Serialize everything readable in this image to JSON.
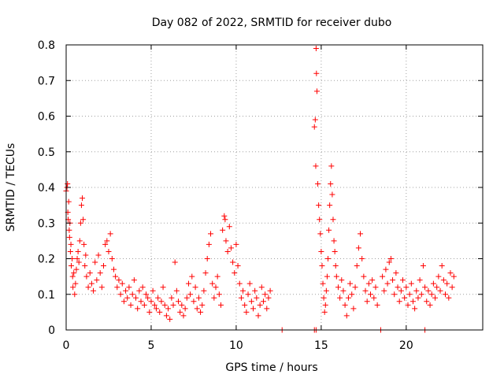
{
  "chart_data": {
    "type": "scatter",
    "title": "Day 082 of 2022, SRMTID for receiver dubo",
    "xlabel": "GPS time / hours",
    "ylabel": "SRMTID / TECUs",
    "xlim": [
      0,
      24.5
    ],
    "ylim": [
      0,
      0.8
    ],
    "grid": true,
    "marker": "+",
    "x_ticks": [
      0,
      5,
      10,
      15,
      20
    ],
    "x_tick_labels": [
      "0",
      "5",
      "10",
      "15",
      "20"
    ],
    "y_ticks": [
      0,
      0.1,
      0.2,
      0.3,
      0.4,
      0.5,
      0.6,
      0.7,
      0.8
    ],
    "y_tick_labels": [
      "0",
      "0.1",
      "0.2",
      "0.3",
      "0.4",
      "0.5",
      "0.6",
      "0.7",
      "0.8"
    ],
    "colors": {
      "series": "#ff0000",
      "grid": "#a0a0a0",
      "axis": "#000000"
    },
    "series": [
      {
        "name": "SRMTID",
        "points": [
          [
            0.0,
            0.39
          ],
          [
            0.05,
            0.4
          ],
          [
            0.08,
            0.41
          ],
          [
            0.1,
            0.33
          ],
          [
            0.12,
            0.31
          ],
          [
            0.15,
            0.36
          ],
          [
            0.18,
            0.28
          ],
          [
            0.2,
            0.26
          ],
          [
            0.22,
            0.3
          ],
          [
            0.25,
            0.22
          ],
          [
            0.28,
            0.24
          ],
          [
            0.3,
            0.18
          ],
          [
            0.35,
            0.2
          ],
          [
            0.38,
            0.15
          ],
          [
            0.4,
            0.12
          ],
          [
            0.45,
            0.16
          ],
          [
            0.5,
            0.1
          ],
          [
            0.55,
            0.13
          ],
          [
            0.6,
            0.17
          ],
          [
            0.65,
            0.2
          ],
          [
            0.7,
            0.22
          ],
          [
            0.75,
            0.19
          ],
          [
            0.8,
            0.25
          ],
          [
            0.85,
            0.3
          ],
          [
            0.9,
            0.35
          ],
          [
            0.95,
            0.37
          ],
          [
            1.0,
            0.31
          ],
          [
            1.05,
            0.24
          ],
          [
            1.1,
            0.18
          ],
          [
            1.15,
            0.21
          ],
          [
            1.2,
            0.15
          ],
          [
            1.3,
            0.12
          ],
          [
            1.4,
            0.16
          ],
          [
            1.5,
            0.13
          ],
          [
            1.6,
            0.11
          ],
          [
            1.7,
            0.19
          ],
          [
            1.8,
            0.14
          ],
          [
            1.9,
            0.21
          ],
          [
            2.0,
            0.16
          ],
          [
            2.1,
            0.12
          ],
          [
            2.2,
            0.18
          ],
          [
            2.3,
            0.24
          ],
          [
            2.4,
            0.25
          ],
          [
            2.5,
            0.22
          ],
          [
            2.6,
            0.27
          ],
          [
            2.7,
            0.2
          ],
          [
            2.8,
            0.17
          ],
          [
            2.9,
            0.15
          ],
          [
            3.0,
            0.12
          ],
          [
            3.1,
            0.14
          ],
          [
            3.2,
            0.1
          ],
          [
            3.3,
            0.13
          ],
          [
            3.4,
            0.08
          ],
          [
            3.5,
            0.11
          ],
          [
            3.6,
            0.09
          ],
          [
            3.7,
            0.12
          ],
          [
            3.8,
            0.07
          ],
          [
            3.9,
            0.1
          ],
          [
            4.0,
            0.14
          ],
          [
            4.1,
            0.09
          ],
          [
            4.2,
            0.06
          ],
          [
            4.3,
            0.11
          ],
          [
            4.4,
            0.08
          ],
          [
            4.5,
            0.12
          ],
          [
            4.6,
            0.07
          ],
          [
            4.7,
            0.1
          ],
          [
            4.8,
            0.09
          ],
          [
            4.9,
            0.05
          ],
          [
            5.0,
            0.08
          ],
          [
            5.1,
            0.11
          ],
          [
            5.2,
            0.07
          ],
          [
            5.3,
            0.06
          ],
          [
            5.4,
            0.09
          ],
          [
            5.5,
            0.05
          ],
          [
            5.6,
            0.08
          ],
          [
            5.7,
            0.12
          ],
          [
            5.8,
            0.07
          ],
          [
            5.9,
            0.04
          ],
          [
            6.0,
            0.06
          ],
          [
            6.1,
            0.03
          ],
          [
            6.2,
            0.09
          ],
          [
            6.3,
            0.07
          ],
          [
            6.4,
            0.19
          ],
          [
            6.5,
            0.11
          ],
          [
            6.6,
            0.08
          ],
          [
            6.7,
            0.05
          ],
          [
            6.8,
            0.07
          ],
          [
            6.9,
            0.04
          ],
          [
            7.0,
            0.06
          ],
          [
            7.1,
            0.09
          ],
          [
            7.2,
            0.13
          ],
          [
            7.3,
            0.1
          ],
          [
            7.4,
            0.15
          ],
          [
            7.5,
            0.08
          ],
          [
            7.6,
            0.12
          ],
          [
            7.7,
            0.06
          ],
          [
            7.8,
            0.09
          ],
          [
            7.9,
            0.05
          ],
          [
            8.0,
            0.07
          ],
          [
            8.1,
            0.11
          ],
          [
            8.2,
            0.16
          ],
          [
            8.3,
            0.2
          ],
          [
            8.4,
            0.24
          ],
          [
            8.5,
            0.27
          ],
          [
            8.6,
            0.13
          ],
          [
            8.7,
            0.09
          ],
          [
            8.8,
            0.12
          ],
          [
            8.9,
            0.15
          ],
          [
            9.0,
            0.1
          ],
          [
            9.1,
            0.07
          ],
          [
            9.2,
            0.28
          ],
          [
            9.3,
            0.32
          ],
          [
            9.35,
            0.31
          ],
          [
            9.4,
            0.25
          ],
          [
            9.5,
            0.22
          ],
          [
            9.6,
            0.29
          ],
          [
            9.7,
            0.23
          ],
          [
            9.8,
            0.19
          ],
          [
            9.9,
            0.16
          ],
          [
            10.0,
            0.24
          ],
          [
            10.1,
            0.18
          ],
          [
            10.2,
            0.13
          ],
          [
            10.3,
            0.09
          ],
          [
            10.4,
            0.11
          ],
          [
            10.5,
            0.07
          ],
          [
            10.6,
            0.05
          ],
          [
            10.7,
            0.1
          ],
          [
            10.8,
            0.13
          ],
          [
            10.9,
            0.08
          ],
          [
            11.0,
            0.06
          ],
          [
            11.1,
            0.11
          ],
          [
            11.2,
            0.09
          ],
          [
            11.3,
            0.04
          ],
          [
            11.4,
            0.07
          ],
          [
            11.5,
            0.12
          ],
          [
            11.6,
            0.08
          ],
          [
            11.7,
            0.1
          ],
          [
            11.8,
            0.06
          ],
          [
            11.9,
            0.09
          ],
          [
            12.0,
            0.11
          ],
          [
            12.7,
            0.0
          ],
          [
            14.6,
            0.0
          ],
          [
            14.7,
            0.0
          ],
          [
            14.6,
            0.57
          ],
          [
            14.65,
            0.59
          ],
          [
            14.7,
            0.79
          ],
          [
            14.72,
            0.72
          ],
          [
            14.75,
            0.67
          ],
          [
            14.68,
            0.46
          ],
          [
            14.8,
            0.41
          ],
          [
            14.85,
            0.35
          ],
          [
            14.9,
            0.31
          ],
          [
            14.95,
            0.27
          ],
          [
            15.0,
            0.22
          ],
          [
            15.05,
            0.18
          ],
          [
            15.1,
            0.13
          ],
          [
            15.15,
            0.09
          ],
          [
            15.2,
            0.05
          ],
          [
            15.25,
            0.07
          ],
          [
            15.3,
            0.11
          ],
          [
            15.35,
            0.15
          ],
          [
            15.4,
            0.2
          ],
          [
            15.45,
            0.28
          ],
          [
            15.5,
            0.35
          ],
          [
            15.55,
            0.41
          ],
          [
            15.6,
            0.46
          ],
          [
            15.65,
            0.38
          ],
          [
            15.7,
            0.31
          ],
          [
            15.75,
            0.25
          ],
          [
            15.8,
            0.22
          ],
          [
            15.85,
            0.18
          ],
          [
            15.9,
            0.15
          ],
          [
            16.0,
            0.12
          ],
          [
            16.1,
            0.09
          ],
          [
            16.2,
            0.14
          ],
          [
            16.3,
            0.11
          ],
          [
            16.4,
            0.07
          ],
          [
            16.5,
            0.04
          ],
          [
            16.6,
            0.09
          ],
          [
            16.7,
            0.13
          ],
          [
            16.8,
            0.1
          ],
          [
            16.9,
            0.06
          ],
          [
            17.0,
            0.12
          ],
          [
            17.1,
            0.18
          ],
          [
            17.2,
            0.23
          ],
          [
            17.3,
            0.27
          ],
          [
            17.4,
            0.2
          ],
          [
            17.5,
            0.15
          ],
          [
            17.6,
            0.11
          ],
          [
            17.7,
            0.08
          ],
          [
            17.8,
            0.13
          ],
          [
            17.9,
            0.1
          ],
          [
            18.0,
            0.14
          ],
          [
            18.1,
            0.09
          ],
          [
            18.2,
            0.12
          ],
          [
            18.3,
            0.07
          ],
          [
            18.5,
            0.0
          ],
          [
            21.1,
            0.0
          ],
          [
            18.6,
            0.15
          ],
          [
            18.7,
            0.11
          ],
          [
            18.8,
            0.17
          ],
          [
            18.9,
            0.13
          ],
          [
            19.0,
            0.19
          ],
          [
            19.1,
            0.2
          ],
          [
            19.2,
            0.14
          ],
          [
            19.3,
            0.1
          ],
          [
            19.4,
            0.16
          ],
          [
            19.5,
            0.12
          ],
          [
            19.6,
            0.08
          ],
          [
            19.7,
            0.11
          ],
          [
            19.8,
            0.14
          ],
          [
            19.9,
            0.09
          ],
          [
            20.0,
            0.12
          ],
          [
            20.1,
            0.07
          ],
          [
            20.2,
            0.1
          ],
          [
            20.3,
            0.13
          ],
          [
            20.4,
            0.08
          ],
          [
            20.5,
            0.06
          ],
          [
            20.6,
            0.11
          ],
          [
            20.7,
            0.09
          ],
          [
            20.8,
            0.14
          ],
          [
            20.9,
            0.1
          ],
          [
            21.0,
            0.18
          ],
          [
            21.1,
            0.12
          ],
          [
            21.2,
            0.08
          ],
          [
            21.3,
            0.11
          ],
          [
            21.4,
            0.07
          ],
          [
            21.5,
            0.1
          ],
          [
            21.6,
            0.13
          ],
          [
            21.7,
            0.09
          ],
          [
            21.8,
            0.12
          ],
          [
            21.9,
            0.15
          ],
          [
            22.0,
            0.11
          ],
          [
            22.1,
            0.18
          ],
          [
            22.2,
            0.14
          ],
          [
            22.3,
            0.1
          ],
          [
            22.4,
            0.13
          ],
          [
            22.5,
            0.09
          ],
          [
            22.6,
            0.16
          ],
          [
            22.7,
            0.12
          ],
          [
            22.8,
            0.15
          ]
        ]
      }
    ]
  }
}
